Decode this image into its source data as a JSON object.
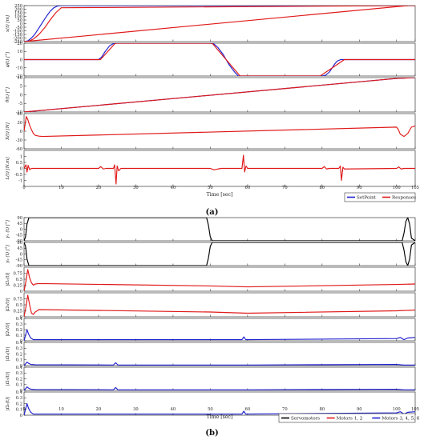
{
  "figure": {
    "caption_a": "(a)",
    "caption_b": "(b)"
  },
  "chart_data": [
    {
      "id": "a",
      "type": "line",
      "x_range": [
        0,
        105
      ],
      "x_ticks": [
        0,
        10,
        20,
        30,
        40,
        50,
        60,
        70,
        80,
        90,
        100,
        105
      ],
      "xlabel": "Time [sec]",
      "legend": {
        "placement": "bottom-right",
        "entries": [
          {
            "name": "SetPoint",
            "color": "#1f1fd0"
          },
          {
            "name": "Responses",
            "color": "#e01818"
          }
        ]
      },
      "panels": [
        {
          "ylabel": "x(t) [m]",
          "ylim": [
            -250,
            250
          ],
          "yticks": [
            250,
            200,
            150,
            100,
            50,
            0,
            -50,
            -100,
            -150,
            -200,
            -250
          ],
          "series": [
            {
              "name": "SetPoint",
              "color": "#1f1fd0",
              "x": [
                0,
                1,
                2,
                3,
                4,
                5,
                6,
                7,
                8,
                9,
                10,
                105
              ],
              "y": [
                -250,
                -240,
                -200,
                -140,
                -60,
                20,
                100,
                170,
                220,
                245,
                250,
                250
              ]
            },
            {
              "name": "Responses",
              "color": "#e01818",
              "x": [
                0,
                1.2,
                2.5,
                4,
                5.5,
                7,
                8.5,
                10,
                105
              ],
              "y": [
                -250,
                -245,
                -215,
                -150,
                -60,
                50,
                150,
                220,
                250
              ]
            },
            {
              "name": "Responses",
              "color": "#e01818",
              "x": [
                0,
                103
              ],
              "y": [
                -250,
                250
              ]
            }
          ]
        },
        {
          "ylabel": "φ(t) [°]",
          "ylim": [
            -20,
            20
          ],
          "yticks": [
            20,
            10,
            0,
            -10,
            -20
          ],
          "series": [
            {
              "name": "SetPoint",
              "color": "#1f1fd0",
              "x": [
                0,
                20,
                20.8,
                21.8,
                23,
                24,
                25,
                50,
                51,
                52,
                53.5,
                55,
                56.5,
                57.5,
                80,
                81,
                82,
                83.3,
                84,
                85,
                105
              ],
              "y": [
                0,
                0,
                3,
                10,
                17,
                19.5,
                20,
                20,
                19,
                15,
                6,
                -6,
                -15,
                -20,
                -20,
                -19,
                -15,
                -6,
                -2,
                0,
                0
              ]
            },
            {
              "name": "Responses",
              "color": "#e01818",
              "x": [
                0,
                20.5,
                24.5,
                50.5,
                58,
                79.5,
                86,
                105
              ],
              "y": [
                0,
                0,
                20,
                20,
                -20,
                -20,
                0,
                0
              ]
            }
          ]
        },
        {
          "ylabel": "θ(t) [°]",
          "ylim": [
            -10,
            10
          ],
          "yticks": [
            10,
            5,
            0,
            -5,
            -10
          ],
          "series": [
            {
              "name": "SetPoint",
              "color": "#1f1fd0",
              "x": [
                0,
                100,
                105
              ],
              "y": [
                -10,
                9.5,
                10
              ]
            },
            {
              "name": "Responses",
              "color": "#e01818",
              "x": [
                0,
                100,
                105
              ],
              "y": [
                -10,
                9.5,
                10
              ]
            }
          ]
        },
        {
          "ylabel": "X(t) [N]",
          "ylim": [
            -60,
            60
          ],
          "yticks": [
            60,
            30,
            0,
            -30,
            -60
          ],
          "series": [
            {
              "name": "Responses",
              "color": "#e01818",
              "x": [
                0,
                0.3,
                0.6,
                1,
                1.5,
                2,
                2.5,
                3,
                4,
                5,
                100,
                100.5,
                101,
                102,
                103,
                104,
                105
              ],
              "y": [
                0,
                25,
                50,
                40,
                20,
                5,
                -8,
                -14,
                -17,
                -18,
                14,
                5,
                -10,
                -18,
                -8,
                14,
                18
              ]
            }
          ]
        },
        {
          "ylabel": "L(t) [N.m]",
          "ylim": [
            -1.5,
            1.5
          ],
          "yticks": [
            1,
            0.5,
            0,
            -0.5,
            -1
          ],
          "series": [
            {
              "name": "Responses",
              "color": "#e01818",
              "x": [
                0,
                0.5,
                0.8,
                1.1,
                1.5,
                2,
                20,
                20.6,
                21.3,
                22,
                24,
                24.3,
                24.7,
                25,
                25.4,
                26,
                50,
                51,
                52,
                53,
                58.5,
                58.9,
                59.2,
                59.6,
                60,
                80,
                80.6,
                81.2,
                82,
                84.5,
                84.9,
                85.2,
                85.6,
                86,
                100,
                100.6,
                101.2,
                102,
                105
              ],
              "y": [
                0,
                0.3,
                -0.3,
                0.25,
                -0.1,
                0,
                0,
                0.15,
                -0.05,
                0,
                0,
                0.3,
                -1.3,
                0.2,
                -0.2,
                0,
                0,
                -0.12,
                -0.05,
                0,
                0,
                1.1,
                -0.3,
                0.2,
                0,
                0,
                0.15,
                -0.05,
                0,
                0,
                0.2,
                -1.0,
                0.1,
                -0.05,
                0,
                0.12,
                -0.05,
                0,
                0
              ]
            }
          ]
        }
      ]
    },
    {
      "id": "b",
      "type": "line",
      "x_range": [
        0,
        105
      ],
      "x_ticks": [
        0,
        10,
        20,
        30,
        40,
        50,
        60,
        70,
        80,
        90,
        100,
        105
      ],
      "xlabel": "Time [sec]",
      "legend": {
        "placement": "bottom-right",
        "entries": [
          {
            "name": "Servomotors",
            "color": "#000000"
          },
          {
            "name": "Motors 1, 2",
            "color": "#e01818"
          },
          {
            "name": "Motors 3, 4, 5, 6",
            "color": "#1f1fd0"
          }
        ]
      },
      "panels": [
        {
          "ylabel": "γ₁ (t) [°]",
          "ylim": [
            -90,
            90
          ],
          "yticks": [
            90,
            45,
            0,
            -45,
            -90
          ],
          "series": [
            {
              "name": "Servomotors",
              "color": "#000000",
              "x": [
                0,
                0.4,
                0.8,
                1.3,
                49,
                49.5,
                50,
                50.5,
                101.5,
                102,
                102.5,
                103,
                103.5,
                104,
                105
              ],
              "y": [
                -90,
                -60,
                40,
                90,
                90,
                30,
                -60,
                -90,
                -90,
                -30,
                60,
                90,
                40,
                -70,
                -90
              ]
            }
          ]
        },
        {
          "ylabel": "γ₂ (t) [°]",
          "ylim": [
            -90,
            90
          ],
          "yticks": [
            90,
            45,
            0,
            -45,
            -90
          ],
          "series": [
            {
              "name": "Servomotors",
              "color": "#000000",
              "x": [
                0,
                0.4,
                0.8,
                1.3,
                49,
                49.5,
                50,
                50.5,
                101.5,
                102,
                102.5,
                103,
                103.5,
                104,
                105
              ],
              "y": [
                90,
                60,
                -40,
                -90,
                -90,
                -30,
                60,
                90,
                90,
                30,
                -60,
                -90,
                -40,
                70,
                90
              ]
            }
          ]
        },
        {
          "ylabel": "|Ω₁(t)|",
          "ylim": [
            0,
            1
          ],
          "yticks": [
            0.75,
            0.5,
            0.25,
            0
          ],
          "series": [
            {
              "name": "Motors 1, 2",
              "color": "#e01818",
              "x": [
                0,
                0.5,
                1,
                1.5,
                2,
                2.5,
                3,
                4,
                50,
                60,
                100,
                105
              ],
              "y": [
                0.0,
                0.4,
                0.9,
                0.55,
                0.35,
                0.25,
                0.3,
                0.32,
                0.22,
                0.18,
                0.28,
                0.3
              ]
            }
          ]
        },
        {
          "ylabel": "|Ω₂(t)|",
          "ylim": [
            0,
            1
          ],
          "yticks": [
            0.75,
            0.5,
            0.25,
            0
          ],
          "series": [
            {
              "name": "Motors 1, 2",
              "color": "#e01818",
              "x": [
                0,
                0.5,
                1,
                1.5,
                2,
                2.5,
                3,
                4,
                50,
                60,
                100,
                105
              ],
              "y": [
                0.0,
                0.4,
                0.9,
                0.5,
                0.15,
                0.1,
                0.2,
                0.3,
                0.2,
                0.15,
                0.25,
                0.28
              ]
            }
          ]
        },
        {
          "ylabel": "|Ω₃(t)|",
          "ylim": [
            0,
            0.4
          ],
          "yticks": [
            0.4,
            0.3,
            0.2,
            0.1,
            0
          ],
          "series": [
            {
              "name": "Motors 3, 4, 5, 6",
              "color": "#1f1fd0",
              "x": [
                0,
                0.4,
                0.8,
                1.2,
                1.8,
                2.5,
                4,
                58.5,
                59,
                59.5,
                60,
                100,
                101,
                102,
                103,
                105
              ],
              "y": [
                0,
                0.1,
                0.2,
                0.12,
                0.05,
                0.02,
                0.02,
                0.02,
                0.07,
                0.02,
                0.02,
                0.04,
                0.06,
                0.02,
                0.05,
                0.06
              ]
            }
          ]
        },
        {
          "ylabel": "|Ω₄(t)|",
          "ylim": [
            0,
            0.4
          ],
          "yticks": [
            0.4,
            0.3,
            0.2,
            0.1,
            0
          ],
          "series": [
            {
              "name": "Motors 3, 4, 5, 6",
              "color": "#1f1fd0",
              "x": [
                0,
                0.4,
                0.8,
                1.2,
                1.8,
                3,
                24,
                24.6,
                25.2,
                26,
                50,
                60,
                100,
                102,
                105
              ],
              "y": [
                0,
                0.03,
                0.06,
                0.04,
                0.02,
                0.015,
                0.01,
                0.05,
                0.01,
                0.01,
                0.01,
                0.01,
                0.02,
                0.01,
                0.01
              ]
            }
          ]
        },
        {
          "ylabel": "|Ω₅(t)|",
          "ylim": [
            0,
            0.4
          ],
          "yticks": [
            0.4,
            0.3,
            0.2,
            0.1,
            0
          ],
          "series": [
            {
              "name": "Motors 3, 4, 5, 6",
              "color": "#1f1fd0",
              "x": [
                0,
                0.4,
                0.8,
                1.2,
                1.8,
                3,
                24,
                24.6,
                25.2,
                26,
                50,
                60,
                100,
                102,
                105
              ],
              "y": [
                0,
                0.03,
                0.06,
                0.04,
                0.02,
                0.015,
                0.01,
                0.05,
                0.01,
                0.01,
                0.01,
                0.01,
                0.02,
                0.01,
                0.01
              ]
            }
          ]
        },
        {
          "ylabel": "|Ω₆(t)|",
          "ylim": [
            0,
            0.4
          ],
          "yticks": [
            0.4,
            0.3,
            0.2,
            0.1,
            0
          ],
          "series": [
            {
              "name": "Motors 3, 4, 5, 6",
              "color": "#1f1fd0",
              "x": [
                0,
                0.4,
                0.8,
                1.2,
                1.8,
                2.5,
                4,
                58.5,
                59,
                59.5,
                60,
                100,
                101,
                102,
                103,
                105
              ],
              "y": [
                0,
                0.1,
                0.2,
                0.12,
                0.05,
                0.02,
                0.02,
                0.02,
                0.07,
                0.02,
                0.02,
                0.04,
                0.06,
                0.02,
                0.05,
                0.06
              ]
            }
          ]
        }
      ]
    }
  ]
}
